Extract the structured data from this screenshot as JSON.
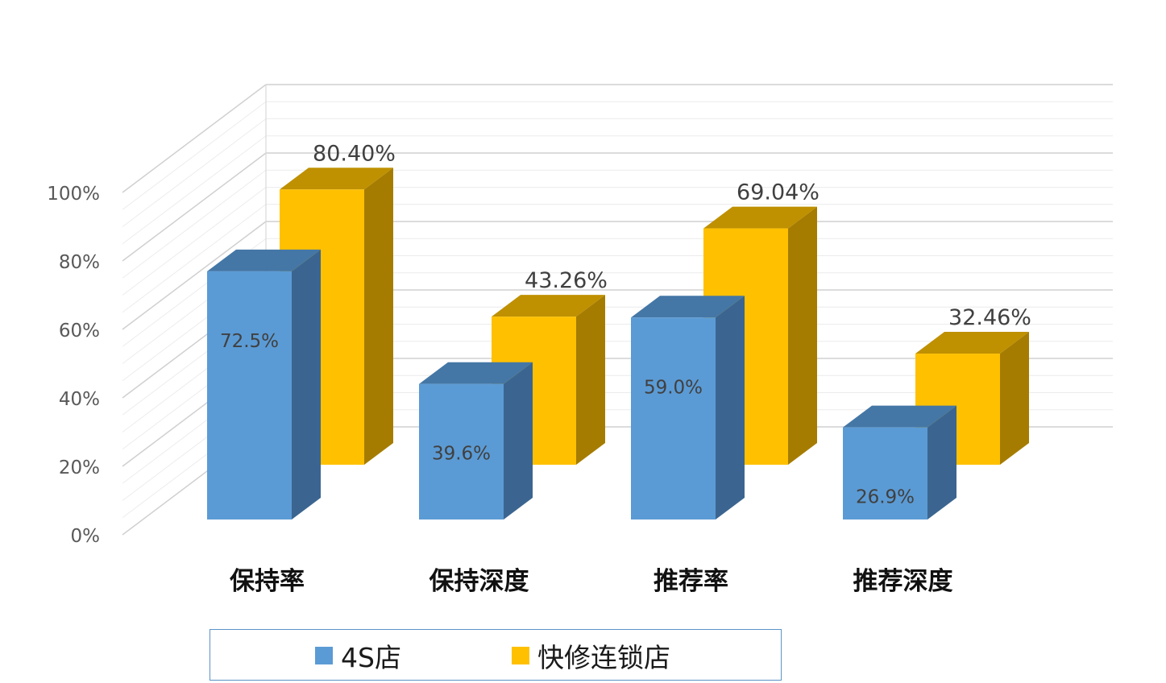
{
  "chart_data": {
    "type": "bar",
    "categories": [
      "保持率",
      "保持深度",
      "推荐率",
      "推荐深度"
    ],
    "series": [
      {
        "name": "4S店",
        "values": [
          72.5,
          39.6,
          59.0,
          26.9
        ],
        "labels": [
          "72.5%",
          "39.6%",
          "59.0%",
          "26.9%"
        ],
        "color": "#5b9bd5",
        "side_color": "#3b6590",
        "top_color": "#4477a6"
      },
      {
        "name": "快修连锁店",
        "values": [
          80.4,
          43.26,
          69.04,
          32.46
        ],
        "labels": [
          "80.40%",
          "43.26%",
          "69.04%",
          "32.46%"
        ],
        "color": "#ffc000",
        "side_color": "#a57c00",
        "top_color": "#bf9000"
      }
    ],
    "ylim": [
      0,
      100
    ],
    "yticks": [
      "0%",
      "20%",
      "40%",
      "60%",
      "80%",
      "100%"
    ],
    "ytick_values": [
      0,
      20,
      40,
      60,
      80,
      100
    ],
    "grid": true,
    "legend": "bottom",
    "style": "3d-clustered-column"
  }
}
